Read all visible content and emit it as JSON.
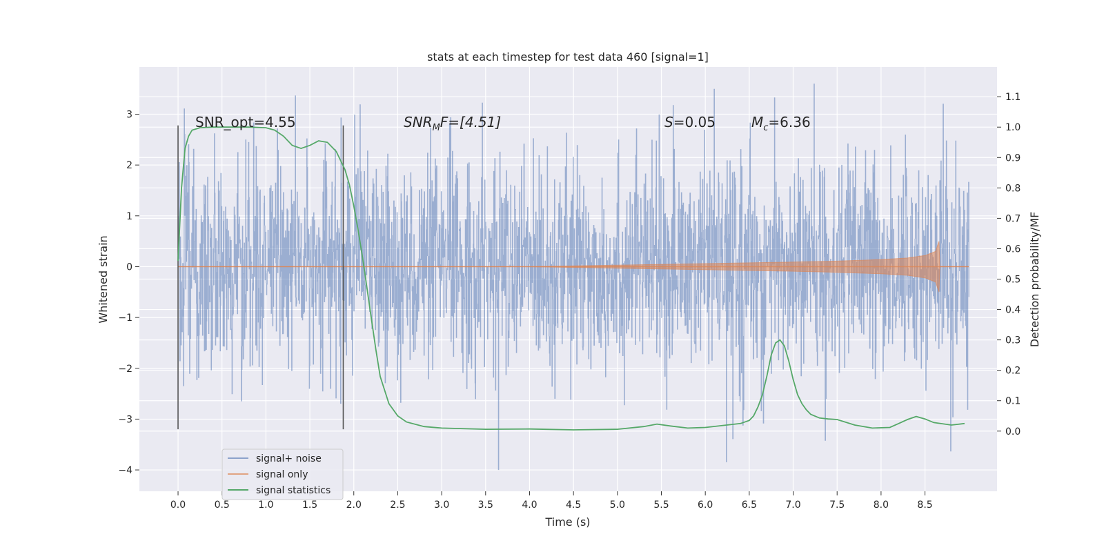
{
  "chart_data": {
    "type": "line",
    "title": "stats at each timestep for test data 460 [signal=1]",
    "xlabel": "Time (s)",
    "ylabel_left": "Whitened strain",
    "ylabel_right": "Detection probability/MF",
    "xlim": [
      -0.44,
      9.32
    ],
    "ylim_left": [
      -4.42,
      3.93
    ],
    "ylim_right": [
      -0.198,
      1.198
    ],
    "x_ticks": [
      "0.0",
      "0.5",
      "1.0",
      "1.5",
      "2.0",
      "2.5",
      "3.0",
      "3.5",
      "4.0",
      "4.5",
      "5.0",
      "5.5",
      "6.0",
      "6.5",
      "7.0",
      "7.5",
      "8.0",
      "8.5"
    ],
    "y_ticks_left": [
      "3",
      "2",
      "1",
      "0",
      "−1",
      "−2",
      "−3",
      "−4"
    ],
    "y_ticks_right": [
      "1.1",
      "1.0",
      "0.9",
      "0.8",
      "0.7",
      "0.6",
      "0.5",
      "0.4",
      "0.3",
      "0.2",
      "0.1",
      "0.0"
    ],
    "grid": true,
    "background": "#eaeaf2",
    "colors": {
      "signal_noise": "#4c72b0",
      "signal_only": "#dd8452",
      "statistics": "#55a868",
      "markers": "#555555"
    },
    "annotations": {
      "snr_opt": "SNR_opt=4.55",
      "snr_mf_main": "SNR",
      "snr_mf_sub": "M",
      "snr_mf_rest": "F=[4.51]",
      "s_main": "S",
      "s_rest": "=0.05",
      "mc_main": "M",
      "mc_sub": "c",
      "mc_rest": "=6.36"
    },
    "legend": {
      "position": "lower-left",
      "entries": [
        "signal+ noise",
        "signal only",
        "signal statistics"
      ]
    },
    "series": [
      {
        "name": "signal+ noise",
        "axis": "left",
        "x_range": [
          0.0,
          9.0
        ],
        "spread_typical": 1.4,
        "max_value": 3.6,
        "min_value": -4.0
      },
      {
        "name": "signal only",
        "axis": "left",
        "envelope": {
          "x": [
            0.0,
            4.0,
            5.0,
            6.0,
            7.0,
            7.5,
            8.0,
            8.3,
            8.5,
            8.62,
            8.66,
            8.67,
            9.0
          ],
          "amplitude": [
            0.0,
            0.0,
            0.03,
            0.06,
            0.09,
            0.11,
            0.14,
            0.17,
            0.22,
            0.3,
            0.5,
            0.0,
            0.0
          ]
        }
      },
      {
        "name": "signal statistics",
        "axis": "right",
        "x": [
          0.0,
          0.04,
          0.08,
          0.12,
          0.16,
          0.25,
          0.4,
          0.6,
          0.8,
          1.0,
          1.1,
          1.2,
          1.3,
          1.4,
          1.5,
          1.6,
          1.7,
          1.8,
          1.9,
          1.95,
          2.0,
          2.05,
          2.1,
          2.15,
          2.2,
          2.25,
          2.3,
          2.4,
          2.5,
          2.6,
          2.8,
          3.0,
          3.5,
          4.0,
          4.5,
          5.0,
          5.3,
          5.45,
          5.6,
          5.8,
          6.0,
          6.4,
          6.5,
          6.55,
          6.6,
          6.65,
          6.7,
          6.75,
          6.8,
          6.85,
          6.9,
          6.95,
          7.0,
          7.05,
          7.1,
          7.15,
          7.2,
          7.3,
          7.4,
          7.5,
          7.7,
          7.9,
          8.1,
          8.2,
          8.3,
          8.4,
          8.5,
          8.6,
          8.8,
          8.95
        ],
        "values": [
          0.56,
          0.8,
          0.93,
          0.97,
          0.99,
          0.998,
          1.0,
          1.0,
          1.0,
          0.998,
          0.99,
          0.97,
          0.94,
          0.93,
          0.94,
          0.955,
          0.95,
          0.92,
          0.86,
          0.81,
          0.74,
          0.66,
          0.57,
          0.47,
          0.37,
          0.27,
          0.18,
          0.09,
          0.05,
          0.03,
          0.015,
          0.01,
          0.006,
          0.007,
          0.004,
          0.006,
          0.015,
          0.023,
          0.017,
          0.01,
          0.012,
          0.025,
          0.035,
          0.05,
          0.08,
          0.12,
          0.18,
          0.25,
          0.29,
          0.3,
          0.28,
          0.23,
          0.17,
          0.12,
          0.09,
          0.07,
          0.055,
          0.043,
          0.04,
          0.038,
          0.02,
          0.01,
          0.012,
          0.025,
          0.038,
          0.048,
          0.04,
          0.028,
          0.02,
          0.025
        ]
      }
    ],
    "vertical_markers": [
      {
        "x": 0.0,
        "y_from": -3.2,
        "y_to": 2.78
      },
      {
        "x": 1.88,
        "y_from": -3.2,
        "y_to": 2.78
      }
    ]
  }
}
